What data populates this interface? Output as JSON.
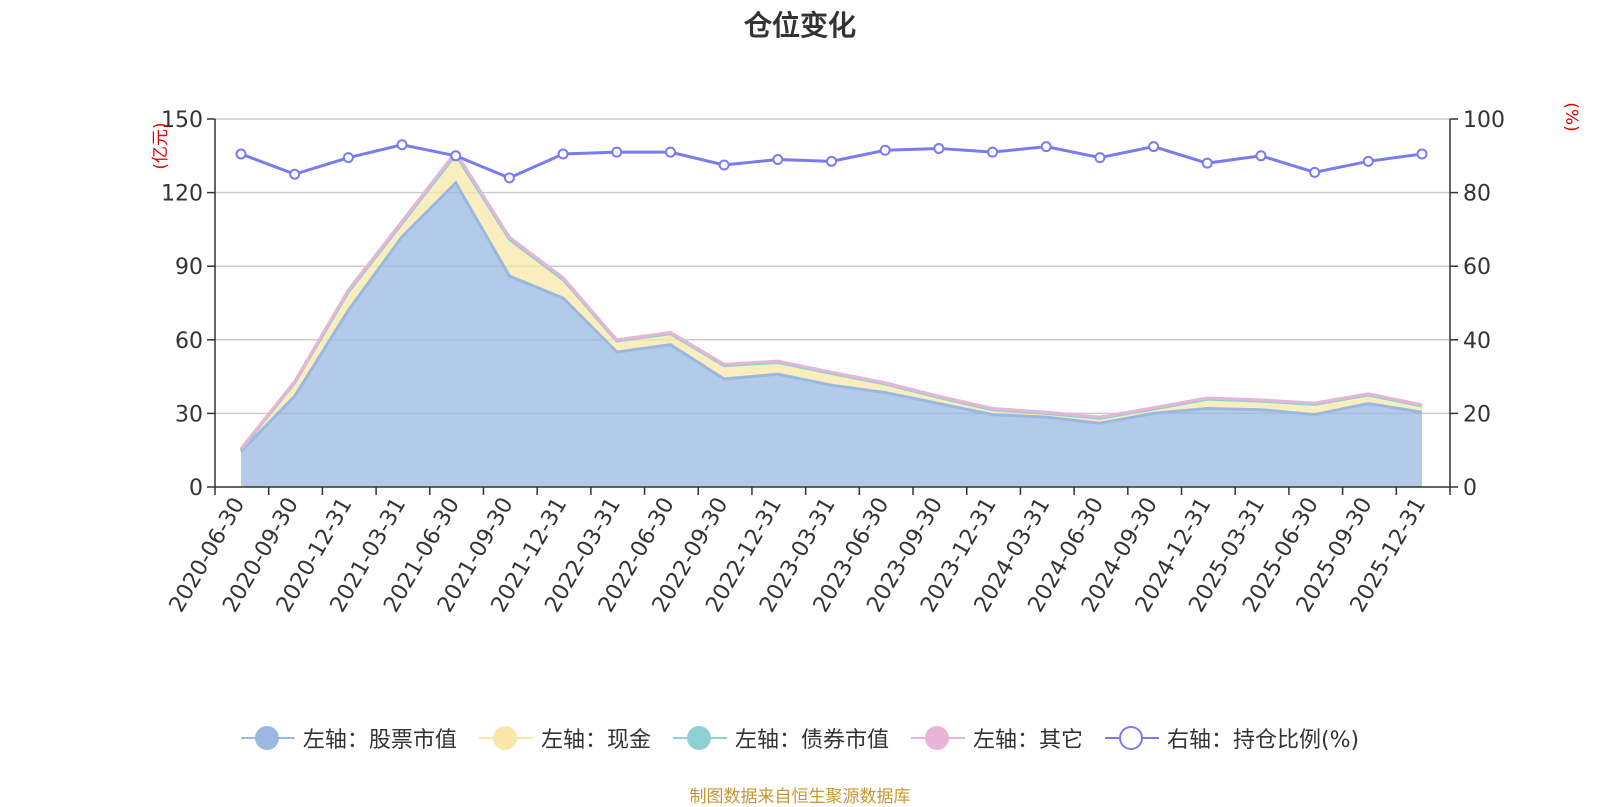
{
  "chart_data": {
    "type": "area",
    "title": "仓位变化",
    "categories": [
      "2020-06-30",
      "2020-09-30",
      "2020-12-31",
      "2021-03-31",
      "2021-06-30",
      "2021-09-30",
      "2021-12-31",
      "2022-03-31",
      "2022-06-30",
      "2022-09-30",
      "2022-12-31",
      "2023-03-31",
      "2023-06-30",
      "2023-09-30",
      "2023-12-31",
      "2024-03-31",
      "2024-06-30",
      "2024-09-30",
      "2024-12-31",
      "2025-03-31",
      "2025-06-30",
      "2025-09-30",
      "2025-12-31"
    ],
    "left_axis": {
      "label": "(亿元)",
      "ylim": [
        0,
        150
      ],
      "ticks": [
        0,
        30,
        60,
        90,
        120,
        150
      ]
    },
    "right_axis": {
      "label": "(%)",
      "ylim": [
        0,
        100
      ],
      "ticks": [
        0,
        20,
        40,
        60,
        80,
        100
      ]
    },
    "series": [
      {
        "name": "左轴：股票市值",
        "axis": "left",
        "stack": true,
        "color": "#9ab8e0",
        "values": [
          14.5,
          37,
          72,
          102,
          124,
          86,
          77,
          55,
          58,
          44,
          46,
          41.5,
          38.5,
          34,
          29.5,
          28.5,
          26,
          30,
          32,
          31.5,
          29.5,
          34,
          30.5
        ]
      },
      {
        "name": "左轴：现金",
        "axis": "left",
        "stack": true,
        "color": "#f8e7a8",
        "values": [
          0.8,
          5.5,
          7.5,
          5.5,
          11.5,
          15,
          7.5,
          4.5,
          4.5,
          5.5,
          4.8,
          4.8,
          3.5,
          2.5,
          2,
          1.5,
          2,
          1.8,
          3.8,
          3.5,
          4.2,
          3.5,
          2.5
        ]
      },
      {
        "name": "左轴：债券市值",
        "axis": "left",
        "stack": true,
        "color": "#8fd0d4",
        "values": [
          0,
          0,
          0,
          0,
          0,
          0,
          0,
          0,
          0,
          0,
          0,
          0,
          0,
          0,
          0,
          0,
          0,
          0,
          0,
          0,
          0,
          0,
          0
        ]
      },
      {
        "name": "左轴：其它",
        "axis": "left",
        "stack": true,
        "color": "#e8b4d8",
        "values": [
          0.3,
          0.5,
          0.8,
          0.8,
          1,
          0.8,
          0.8,
          0.5,
          0.5,
          0.5,
          0.5,
          0.5,
          0.5,
          0.5,
          0.5,
          0.5,
          0.5,
          0.5,
          0.5,
          0.5,
          0.5,
          0.5,
          0.5
        ]
      },
      {
        "name": "右轴：持仓比例(%)",
        "axis": "right",
        "stack": false,
        "color": "#7b7bf0",
        "values": [
          90.5,
          85,
          89.5,
          93,
          90,
          84,
          90.5,
          91,
          91,
          87.5,
          89,
          88.5,
          91.5,
          92,
          91,
          92.5,
          89.5,
          92.5,
          88,
          90,
          85.5,
          88.5,
          90.5
        ]
      }
    ]
  },
  "source_note": "制图数据来自恒生聚源数据库"
}
